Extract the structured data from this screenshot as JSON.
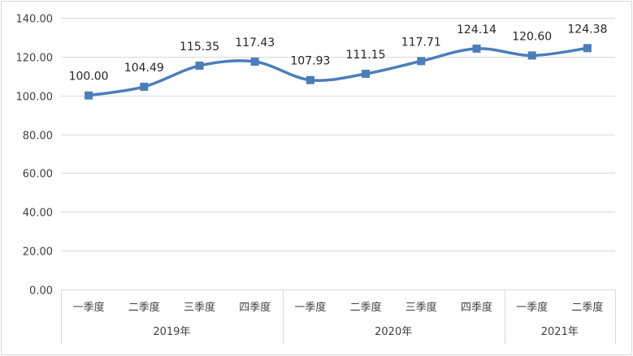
{
  "chart_data": {
    "type": "line",
    "title": "",
    "xlabel": "",
    "ylabel": "",
    "ylim": [
      0,
      140
    ],
    "y_ticks": [
      "0.00",
      "20.00",
      "40.00",
      "60.00",
      "80.00",
      "100.00",
      "120.00",
      "140.00"
    ],
    "grid": "horizontal",
    "smooth": true,
    "marker": "square",
    "color": "#4a7ebb",
    "categories": [
      "一季度",
      "二季度",
      "三季度",
      "四季度",
      "一季度",
      "二季度",
      "三季度",
      "四季度",
      "一季度",
      "二季度"
    ],
    "groups": [
      {
        "label": "2019年",
        "count": 4
      },
      {
        "label": "2020年",
        "count": 4
      },
      {
        "label": "2021年",
        "count": 2
      }
    ],
    "series": [
      {
        "values": [
          100.0,
          104.49,
          115.35,
          117.43,
          107.93,
          111.15,
          117.71,
          124.14,
          120.6,
          124.38
        ],
        "labels": [
          "100.00",
          "104.49",
          "115.35",
          "117.43",
          "107.93",
          "111.15",
          "117.71",
          "124.14",
          "120.60",
          "124.38"
        ]
      }
    ]
  }
}
